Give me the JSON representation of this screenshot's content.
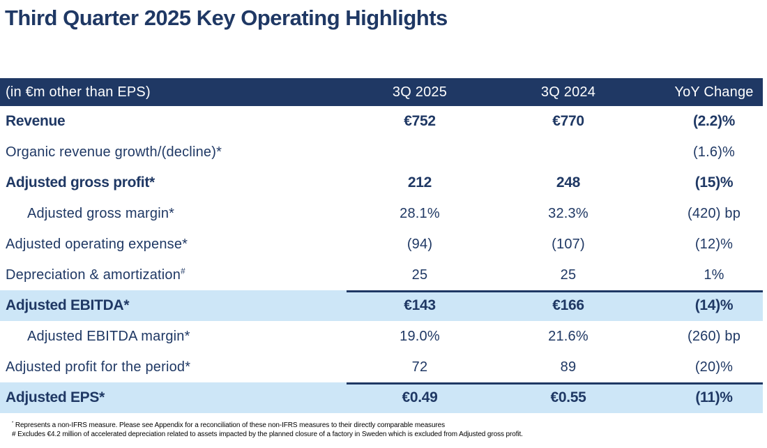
{
  "title": "Third Quarter 2025 Key Operating Highlights",
  "colors": {
    "navy": "#1F3864",
    "highlight_blue": "#CDE6F7",
    "header_text": "#FFFFFF",
    "footnote_text": "#000000"
  },
  "table": {
    "header": {
      "units_label": "(in €m other than EPS)",
      "col_2025": "3Q 2025",
      "col_2024": "3Q 2024",
      "col_yoy": "YoY Change"
    },
    "rows": [
      {
        "label": "Revenue",
        "v2025": "€752",
        "v2024": "€770",
        "yoy": "(2.2)%",
        "bold": true
      },
      {
        "label": "Organic revenue growth/(decline)*",
        "v2025": "",
        "v2024": "",
        "yoy": "(1.6)%"
      },
      {
        "label": "Adjusted gross profit*",
        "v2025": "212",
        "v2024": "248",
        "yoy": "(15)%",
        "bold": true
      },
      {
        "label": "Adjusted gross margin*",
        "v2025": "28.1%",
        "v2024": "32.3%",
        "yoy": "(420) bp",
        "indent": true
      },
      {
        "label": "Adjusted operating expense*",
        "v2025": "(94)",
        "v2024": "(107)",
        "yoy": "(12)%"
      },
      {
        "label": "Depreciation & amortization",
        "label_sup": "#",
        "v2025": "25",
        "v2024": "25",
        "yoy": "1%"
      },
      {
        "label": "Adjusted EBITDA*",
        "v2025": "€143",
        "v2024": "€166",
        "yoy": "(14)%",
        "bold": true,
        "highlight": true,
        "topline": true
      },
      {
        "label": "Adjusted EBITDA margin*",
        "v2025": "19.0%",
        "v2024": "21.6%",
        "yoy": "(260) bp",
        "indent": true
      },
      {
        "label": "Adjusted profit for the period*",
        "v2025": "72",
        "v2024": "89",
        "yoy": "(20)%"
      },
      {
        "label": "Adjusted EPS*",
        "v2025": "€0.49",
        "v2024": "€0.55",
        "yoy": "(11)%",
        "bold": true,
        "highlight": true,
        "topline": true
      }
    ]
  },
  "footnotes": [
    {
      "marker": "*",
      "superscript": true,
      "text": "Represents a non-IFRS measure. Please see Appendix for a reconciliation of these non-IFRS measures to their directly comparable measures"
    },
    {
      "marker": "#",
      "superscript": false,
      "text": "Excludes €4.2 million of accelerated depreciation related to assets impacted by the planned closure of a factory in Sweden which is excluded from Adjusted gross profit."
    }
  ]
}
